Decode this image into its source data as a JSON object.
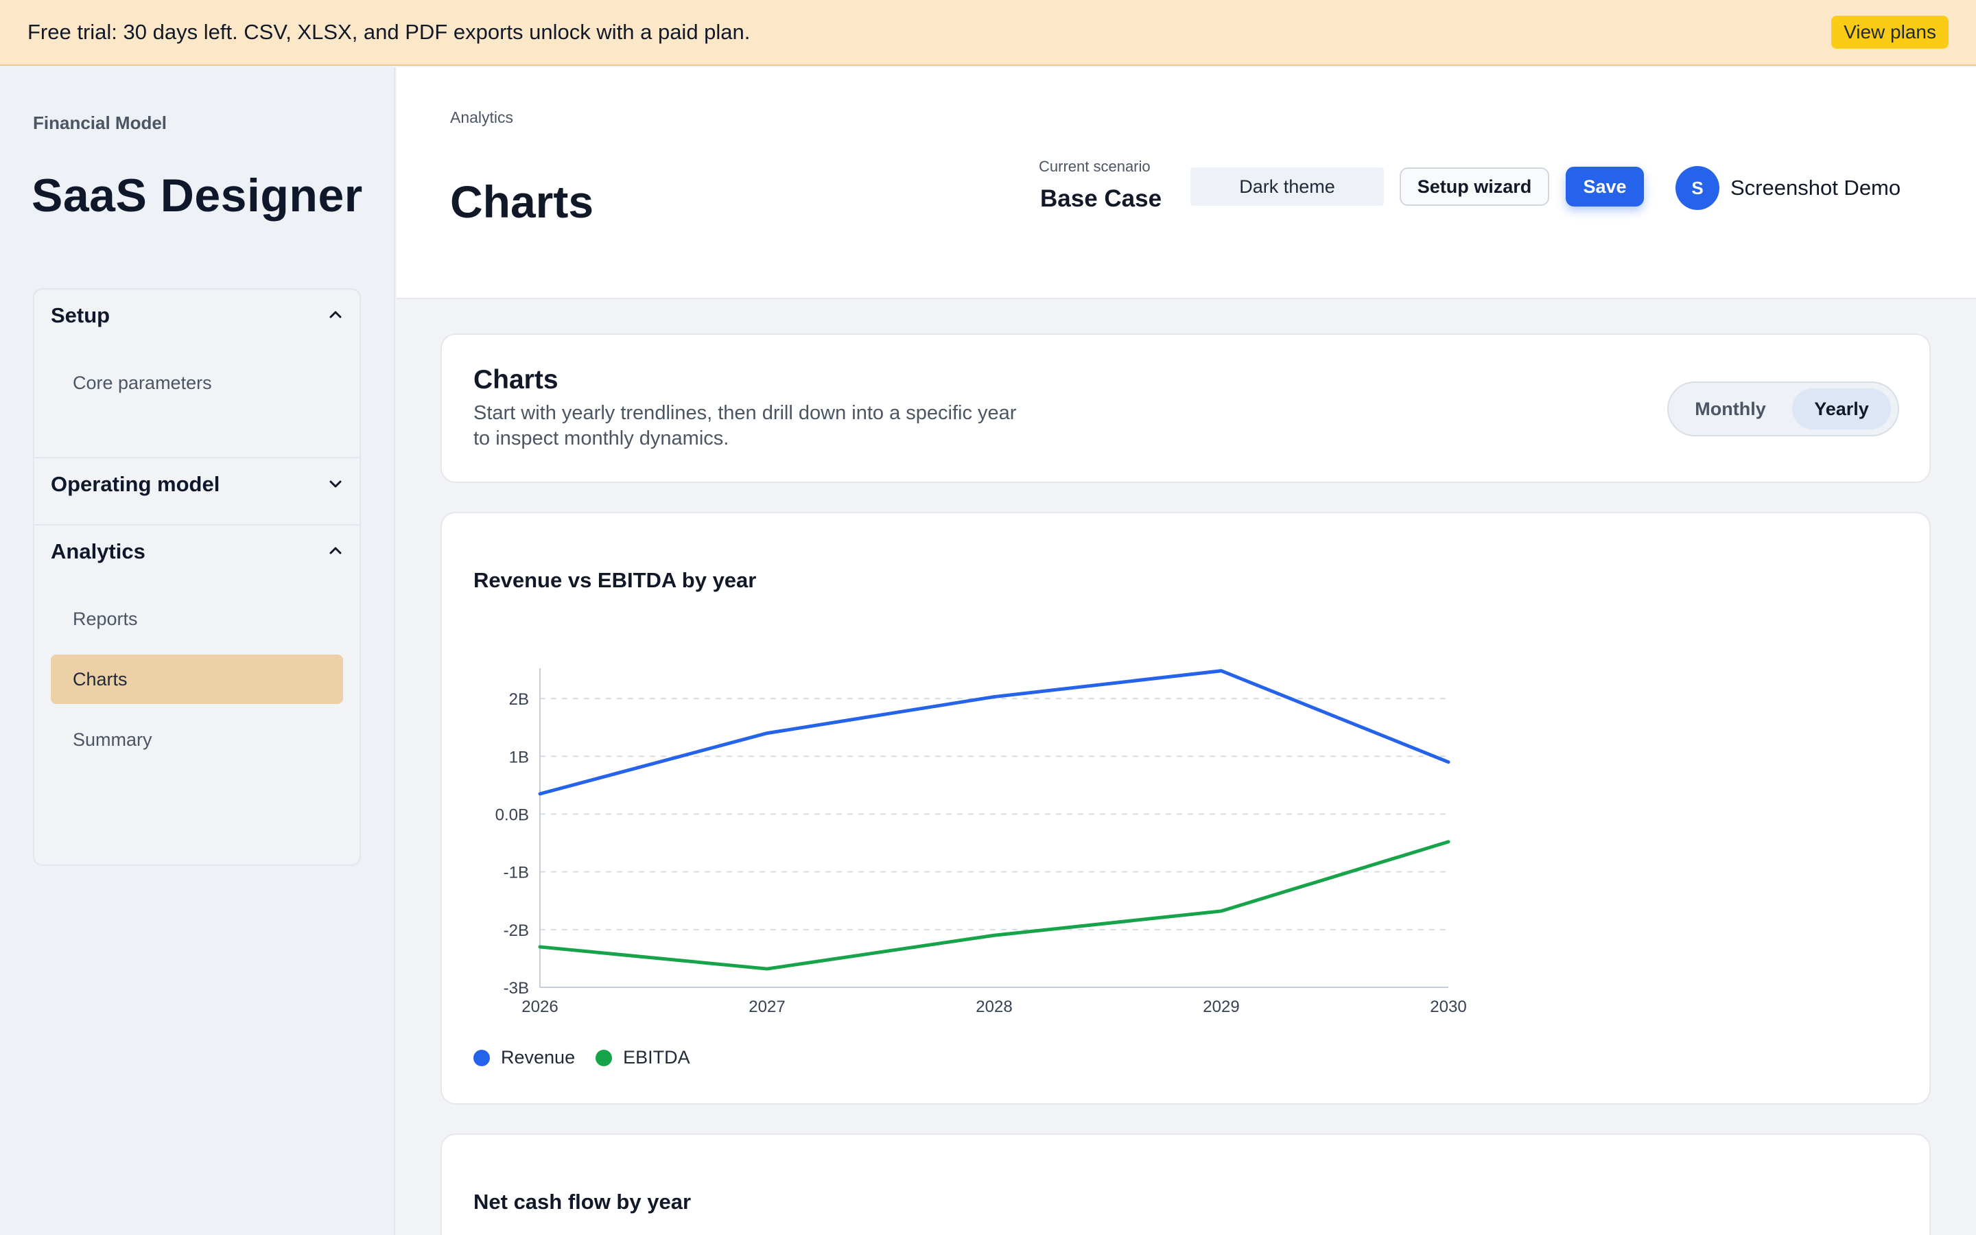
{
  "banner": {
    "text": "Free trial: 30 days left. CSV, XLSX, and PDF exports unlock with a paid plan.",
    "button": "View plans"
  },
  "sidebar": {
    "kicker": "Financial Model",
    "title": "SaaS Designer",
    "groups": [
      {
        "label": "Setup",
        "expanded": true,
        "icon": "chevron-up-icon",
        "items": [
          {
            "label": "Core parameters",
            "active": false
          }
        ]
      },
      {
        "label": "Operating model",
        "expanded": false,
        "icon": "chevron-down-icon",
        "items": []
      },
      {
        "label": "Analytics",
        "expanded": true,
        "icon": "chevron-up-icon",
        "items": [
          {
            "label": "Reports",
            "active": false
          },
          {
            "label": "Charts",
            "active": true
          },
          {
            "label": "Summary",
            "active": false
          }
        ]
      }
    ]
  },
  "header": {
    "breadcrumb": "Analytics",
    "title": "Charts",
    "scenario_label": "Current scenario",
    "scenario_value": "Base Case",
    "theme_button": "Dark theme",
    "wizard_button": "Setup wizard",
    "save_button": "Save",
    "user": {
      "initial": "S",
      "name": "Screenshot Demo"
    }
  },
  "intro_card": {
    "title": "Charts",
    "description": "Start with yearly trendlines, then drill down into a specific year to inspect monthly dynamics.",
    "toggle": {
      "options": [
        "Monthly",
        "Yearly"
      ],
      "selected": "Yearly"
    }
  },
  "colors": {
    "revenue": "#2563eb",
    "ebitda": "#16a34a",
    "accent": "#2563eb",
    "banner": "#fce7c8"
  },
  "chart_data": [
    {
      "type": "line",
      "title": "Revenue vs EBITDA by year",
      "x": [
        "2026",
        "2027",
        "2028",
        "2029",
        "2030"
      ],
      "series": [
        {
          "name": "Revenue",
          "values": [
            0.35,
            1.4,
            2.03,
            2.48,
            0.9
          ]
        },
        {
          "name": "EBITDA",
          "values": [
            -2.3,
            -2.68,
            -2.1,
            -1.68,
            -0.48
          ]
        }
      ],
      "yticks": [
        "-3B",
        "-2B",
        "-1B",
        "0.0B",
        "1B",
        "2B"
      ],
      "ytick_values": [
        -3,
        -2,
        -1,
        0,
        1,
        2
      ],
      "ylim": [
        -3,
        2.5
      ],
      "grid": true,
      "legend": "bottom-left",
      "xlabel": "",
      "ylabel": ""
    },
    {
      "type": "line",
      "title": "Net cash flow by year"
    }
  ]
}
